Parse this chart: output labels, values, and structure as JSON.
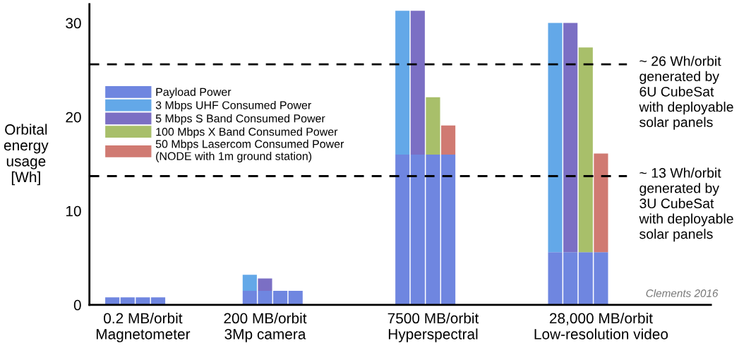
{
  "chart_data": {
    "type": "bar",
    "stacked": true,
    "categories": [
      null,
      null,
      "0.2 MB/orbit\nMagnetometer",
      null,
      null,
      null,
      null,
      null,
      null,
      null,
      "200 MB/orbit\n3Mp camera",
      null,
      null,
      null,
      null,
      null,
      null,
      null,
      null,
      null,
      null,
      "7500 MB/orbit\nHyperspectral",
      null,
      null,
      null,
      null,
      null,
      null,
      null,
      null,
      null,
      null,
      "28,000 MB/orbit\nLow-resolution video"
    ],
    "ylabel": "Orbital\nenergy\nusage\n[Wh]",
    "series": [
      {
        "name": "Payload Power",
        "color": "#6f86e0",
        "values": [
          0.8,
          0.8,
          0.8,
          0.8,
          null,
          null,
          null,
          null,
          null,
          1.5,
          1.5,
          1.5,
          1.5,
          null,
          null,
          null,
          null,
          null,
          null,
          16.0,
          16.0,
          16.0,
          16.0,
          null,
          null,
          null,
          null,
          null,
          null,
          5.6,
          5.6,
          5.6,
          5.6
        ]
      },
      {
        "name": "3 Mbps UHF Consumed Power",
        "color": "#63a8e8",
        "values": [
          null,
          null,
          null,
          null,
          null,
          null,
          null,
          null,
          null,
          1.7,
          null,
          null,
          null,
          null,
          null,
          null,
          null,
          null,
          null,
          15.3,
          null,
          null,
          null,
          null,
          null,
          null,
          null,
          null,
          null,
          24.4,
          null,
          null,
          null
        ]
      },
      {
        "name": "5 Mbps S Band Consumed Power",
        "color": "#7b6fc4",
        "values": [
          null,
          null,
          null,
          null,
          null,
          null,
          null,
          null,
          null,
          null,
          1.3,
          null,
          null,
          null,
          null,
          null,
          null,
          null,
          null,
          null,
          15.3,
          null,
          null,
          null,
          null,
          null,
          null,
          null,
          null,
          null,
          24.4,
          null,
          null
        ]
      },
      {
        "name": "100 Mbps X Band Consumed Power",
        "color": "#a8bf6a",
        "values": [
          null,
          null,
          null,
          null,
          null,
          null,
          null,
          null,
          null,
          null,
          null,
          null,
          null,
          null,
          null,
          null,
          null,
          null,
          null,
          null,
          null,
          6.1,
          null,
          null,
          null,
          null,
          null,
          null,
          null,
          null,
          null,
          21.8,
          null
        ]
      },
      {
        "name": "50 Mbps Lasercom Consumed Power\n(NODE with 1m ground station)",
        "color": "#d07a72",
        "values": [
          null,
          null,
          null,
          null,
          null,
          null,
          null,
          null,
          null,
          null,
          null,
          null,
          null,
          null,
          null,
          null,
          null,
          null,
          null,
          null,
          null,
          null,
          3.1,
          null,
          null,
          null,
          null,
          null,
          null,
          null,
          null,
          null,
          10.5
        ]
      }
    ],
    "ylim": [
      0,
      32
    ],
    "yticks": [
      0,
      10,
      20,
      30
    ],
    "ref_lines": [
      {
        "axis": "y",
        "value": 25.6,
        "label": "~ 26 Wh/orbit\ngenerated by\n6U CubeSat\nwith deployable\nsolar panels",
        "color": "#000000",
        "line_style": "dashed"
      },
      {
        "axis": "y",
        "value": 13.7,
        "label": "~ 13 Wh/orbit\ngenerated by\n3U CubeSat\nwith deployable\nsolar panels",
        "color": "#000000",
        "line_style": "dashed"
      }
    ],
    "annotations": [
      "Clements 2016"
    ],
    "legend": "left",
    "grid": false
  }
}
